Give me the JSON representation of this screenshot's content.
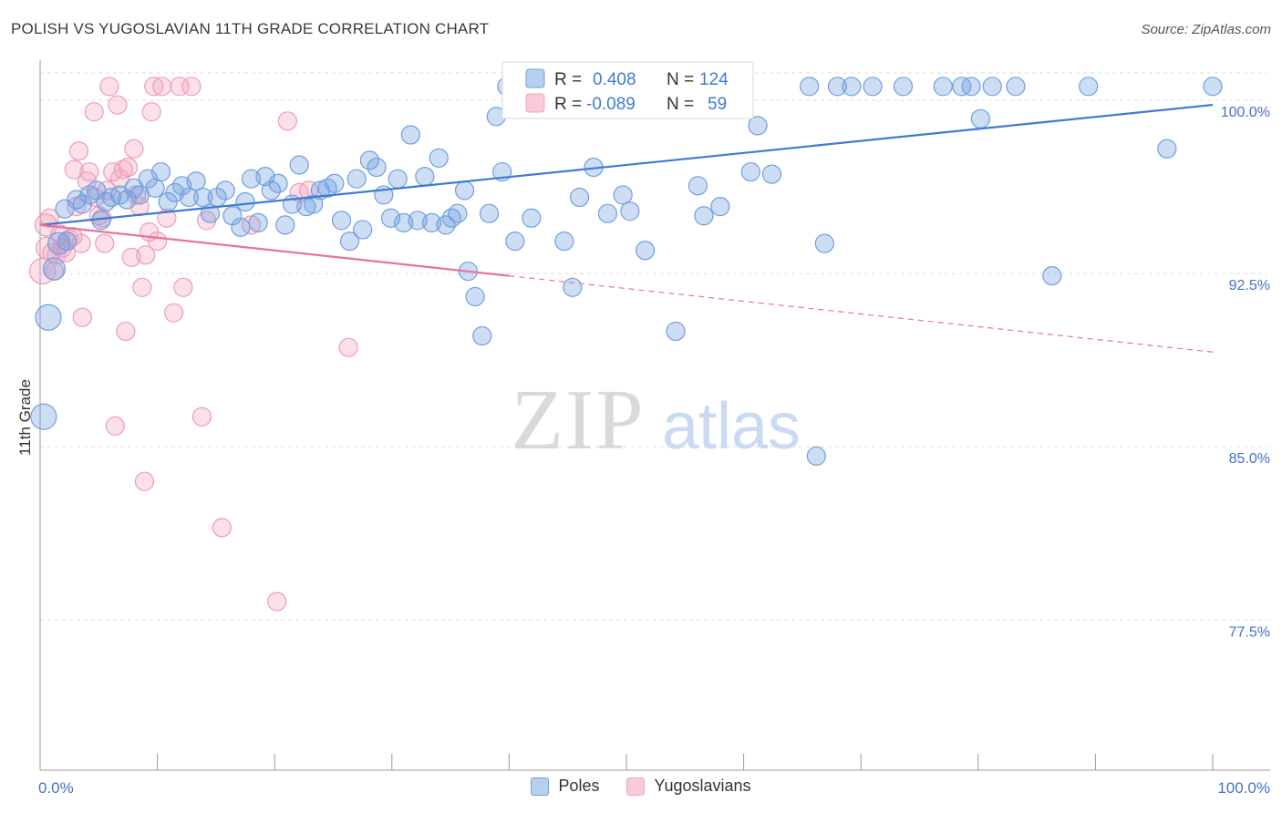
{
  "title": "POLISH VS YUGOSLAVIAN 11TH GRADE CORRELATION CHART",
  "source": "Source: ZipAtlas.com",
  "watermark": {
    "zip": "ZIP",
    "atlas": "atlas"
  },
  "colors": {
    "poles": "#6f9fdf",
    "poles_line": "#3d7bd4",
    "yugo": "#f3a6c0",
    "yugo_line": "#e6739c",
    "grid": "#dddddd",
    "tick_label": "#4472c4"
  },
  "legend": {
    "r_label": "R =",
    "n_label": "N =",
    "poles": {
      "r": "0.408",
      "n": "124"
    },
    "yugo": {
      "r": "-0.089",
      "n": "59"
    }
  },
  "bottom_legend": [
    {
      "key": "poles",
      "label": "Poles"
    },
    {
      "key": "yugo",
      "label": "Yugoslavians"
    }
  ],
  "chart_data": {
    "type": "scatter",
    "xlabel": "",
    "ylabel": "11th Grade",
    "xlim": [
      0,
      100
    ],
    "ylim": [
      71,
      101.5
    ],
    "x_tick_labels": [
      "0.0%",
      "100.0%"
    ],
    "y_ticks": [
      {
        "value": 100.0,
        "label": "100.0%"
      },
      {
        "value": 92.5,
        "label": "92.5%"
      },
      {
        "value": 85.0,
        "label": "85.0%"
      },
      {
        "value": 77.5,
        "label": "77.5%"
      }
    ],
    "grid": true,
    "legend_position": "top-center",
    "series": [
      {
        "name": "Poles",
        "key": "poles",
        "trend": {
          "x": [
            0,
            100
          ],
          "y": [
            94.6,
            99.8
          ],
          "solid_to": 100
        },
        "points": [
          [
            0.3,
            86.3,
            14
          ],
          [
            0.7,
            90.6,
            14
          ],
          [
            1.2,
            92.7,
            12
          ],
          [
            1.6,
            93.8,
            12
          ],
          [
            2.1,
            95.3,
            10
          ],
          [
            2.3,
            93.9,
            10
          ],
          [
            3.1,
            95.7,
            10
          ],
          [
            3.6,
            95.5,
            10
          ],
          [
            4.2,
            95.9,
            10
          ],
          [
            4.8,
            96.1,
            10
          ],
          [
            5.2,
            94.8,
            10
          ],
          [
            5.6,
            95.6,
            10
          ],
          [
            6.1,
            95.8,
            10
          ],
          [
            6.8,
            95.9,
            10
          ],
          [
            7.4,
            95.7,
            10
          ],
          [
            8.0,
            96.2,
            10
          ],
          [
            8.5,
            95.9,
            10
          ],
          [
            9.2,
            96.6,
            10
          ],
          [
            9.8,
            96.2,
            10
          ],
          [
            10.3,
            96.9,
            10
          ],
          [
            10.9,
            95.6,
            10
          ],
          [
            11.5,
            96.0,
            10
          ],
          [
            12.1,
            96.3,
            10
          ],
          [
            12.7,
            95.8,
            10
          ],
          [
            13.3,
            96.5,
            10
          ],
          [
            13.9,
            95.8,
            10
          ],
          [
            14.5,
            95.1,
            10
          ],
          [
            15.1,
            95.8,
            10
          ],
          [
            15.8,
            96.1,
            10
          ],
          [
            16.4,
            95.0,
            10
          ],
          [
            17.1,
            94.5,
            10
          ],
          [
            17.5,
            95.6,
            10
          ],
          [
            18.0,
            96.6,
            10
          ],
          [
            18.6,
            94.7,
            10
          ],
          [
            19.2,
            96.7,
            10
          ],
          [
            19.7,
            96.1,
            10
          ],
          [
            20.3,
            96.4,
            10
          ],
          [
            20.9,
            94.6,
            10
          ],
          [
            21.5,
            95.5,
            10
          ],
          [
            22.1,
            97.2,
            10
          ],
          [
            22.7,
            95.4,
            10
          ],
          [
            23.3,
            95.5,
            10
          ],
          [
            23.9,
            96.1,
            10
          ],
          [
            24.5,
            96.2,
            10
          ],
          [
            25.1,
            96.4,
            10
          ],
          [
            25.7,
            94.8,
            10
          ],
          [
            26.4,
            93.9,
            10
          ],
          [
            27.0,
            96.6,
            10
          ],
          [
            27.5,
            94.4,
            10
          ],
          [
            28.1,
            97.4,
            10
          ],
          [
            28.7,
            97.1,
            10
          ],
          [
            29.3,
            95.9,
            10
          ],
          [
            29.9,
            94.9,
            10
          ],
          [
            30.5,
            96.6,
            10
          ],
          [
            31.0,
            94.7,
            10
          ],
          [
            31.6,
            98.5,
            10
          ],
          [
            32.2,
            94.8,
            10
          ],
          [
            32.8,
            96.7,
            10
          ],
          [
            33.4,
            94.7,
            10
          ],
          [
            34.0,
            97.5,
            10
          ],
          [
            34.6,
            94.6,
            10
          ],
          [
            35.1,
            94.9,
            10
          ],
          [
            35.6,
            95.1,
            10
          ],
          [
            36.2,
            96.1,
            10
          ],
          [
            36.5,
            92.6,
            10
          ],
          [
            37.1,
            91.5,
            10
          ],
          [
            37.7,
            89.8,
            10
          ],
          [
            38.3,
            95.1,
            10
          ],
          [
            38.9,
            99.3,
            10
          ],
          [
            39.4,
            96.9,
            10
          ],
          [
            39.8,
            100.6,
            10
          ],
          [
            40.5,
            93.9,
            10
          ],
          [
            41.3,
            100.6,
            10
          ],
          [
            41.9,
            94.9,
            10
          ],
          [
            42.6,
            100.6,
            10
          ],
          [
            43.4,
            99.8,
            10
          ],
          [
            44.1,
            100.6,
            10
          ],
          [
            44.7,
            93.9,
            10
          ],
          [
            45.4,
            91.9,
            10
          ],
          [
            46.0,
            95.8,
            10
          ],
          [
            46.7,
            100.6,
            10
          ],
          [
            47.2,
            97.1,
            10
          ],
          [
            47.8,
            100.6,
            10
          ],
          [
            48.4,
            95.1,
            10
          ],
          [
            49.1,
            100.6,
            10
          ],
          [
            49.7,
            95.9,
            10
          ],
          [
            50.3,
            95.2,
            10
          ],
          [
            50.9,
            100.6,
            10
          ],
          [
            51.6,
            93.5,
            10
          ],
          [
            52.2,
            100.6,
            10
          ],
          [
            52.8,
            100.6,
            10
          ],
          [
            53.5,
            100.6,
            10
          ],
          [
            54.2,
            90.0,
            10
          ],
          [
            54.8,
            100.6,
            10
          ],
          [
            55.4,
            100.6,
            10
          ],
          [
            56.1,
            96.3,
            10
          ],
          [
            56.6,
            95.0,
            10
          ],
          [
            57.4,
            99.8,
            10
          ],
          [
            58.0,
            95.4,
            10
          ],
          [
            58.7,
            100.6,
            10
          ],
          [
            59.3,
            100.6,
            10
          ],
          [
            60.0,
            100.6,
            10
          ],
          [
            60.6,
            96.9,
            10
          ],
          [
            61.2,
            98.9,
            10
          ],
          [
            62.4,
            96.8,
            10
          ],
          [
            65.6,
            100.6,
            10
          ],
          [
            66.2,
            84.6,
            10
          ],
          [
            66.9,
            93.8,
            10
          ],
          [
            68.0,
            100.6,
            10
          ],
          [
            69.2,
            100.6,
            10
          ],
          [
            71.0,
            100.6,
            10
          ],
          [
            73.6,
            100.6,
            10
          ],
          [
            77.0,
            100.6,
            10
          ],
          [
            78.6,
            100.6,
            10
          ],
          [
            79.4,
            100.6,
            10
          ],
          [
            80.2,
            99.2,
            10
          ],
          [
            81.2,
            100.6,
            10
          ],
          [
            83.2,
            100.6,
            10
          ],
          [
            86.3,
            92.4,
            10
          ],
          [
            89.4,
            100.6,
            10
          ],
          [
            96.1,
            97.9,
            10
          ],
          [
            100.0,
            100.6,
            10
          ]
        ]
      },
      {
        "name": "Yugoslavians",
        "key": "yugo",
        "trend": {
          "x": [
            0,
            100
          ],
          "y": [
            94.6,
            89.1
          ],
          "solid_to": 40
        },
        "points": [
          [
            0.2,
            92.6,
            14
          ],
          [
            0.5,
            94.6,
            12
          ],
          [
            0.6,
            93.6,
            12
          ],
          [
            0.8,
            94.9,
            10
          ],
          [
            1.0,
            93.4,
            10
          ],
          [
            1.2,
            92.6,
            10
          ],
          [
            1.4,
            93.3,
            10
          ],
          [
            1.7,
            94.2,
            10
          ],
          [
            1.9,
            93.6,
            10
          ],
          [
            2.2,
            93.4,
            10
          ],
          [
            2.5,
            94.0,
            10
          ],
          [
            2.8,
            94.1,
            10
          ],
          [
            2.9,
            97.0,
            10
          ],
          [
            3.1,
            95.4,
            10
          ],
          [
            3.3,
            97.8,
            10
          ],
          [
            3.5,
            93.8,
            10
          ],
          [
            3.6,
            90.6,
            10
          ],
          [
            4.0,
            96.5,
            10
          ],
          [
            4.2,
            96.9,
            10
          ],
          [
            4.6,
            99.5,
            10
          ],
          [
            4.7,
            95.8,
            10
          ],
          [
            5.0,
            95.0,
            10
          ],
          [
            5.3,
            94.9,
            10
          ],
          [
            5.5,
            93.8,
            10
          ],
          [
            5.7,
            96.1,
            10
          ],
          [
            5.9,
            100.6,
            10
          ],
          [
            6.2,
            96.9,
            10
          ],
          [
            6.4,
            85.9,
            10
          ],
          [
            6.6,
            99.8,
            10
          ],
          [
            6.8,
            96.6,
            10
          ],
          [
            7.1,
            97.0,
            10
          ],
          [
            7.3,
            90.0,
            10
          ],
          [
            7.5,
            97.1,
            10
          ],
          [
            7.8,
            93.2,
            10
          ],
          [
            8.0,
            97.9,
            10
          ],
          [
            8.2,
            95.9,
            10
          ],
          [
            8.5,
            95.4,
            10
          ],
          [
            8.7,
            91.9,
            10
          ],
          [
            8.9,
            83.5,
            10
          ],
          [
            9.0,
            93.3,
            10
          ],
          [
            9.3,
            94.3,
            10
          ],
          [
            9.5,
            99.5,
            10
          ],
          [
            9.7,
            100.6,
            10
          ],
          [
            10.0,
            93.9,
            10
          ],
          [
            10.4,
            100.6,
            10
          ],
          [
            10.8,
            94.9,
            10
          ],
          [
            11.4,
            90.8,
            10
          ],
          [
            11.9,
            100.6,
            10
          ],
          [
            12.2,
            91.9,
            10
          ],
          [
            12.9,
            100.6,
            10
          ],
          [
            13.8,
            86.3,
            10
          ],
          [
            14.2,
            94.8,
            10
          ],
          [
            15.5,
            81.5,
            10
          ],
          [
            18.0,
            94.6,
            10
          ],
          [
            20.2,
            78.3,
            10
          ],
          [
            21.1,
            99.1,
            10
          ],
          [
            22.1,
            96.0,
            10
          ],
          [
            22.9,
            96.1,
            10
          ],
          [
            26.3,
            89.3,
            10
          ]
        ]
      }
    ]
  }
}
